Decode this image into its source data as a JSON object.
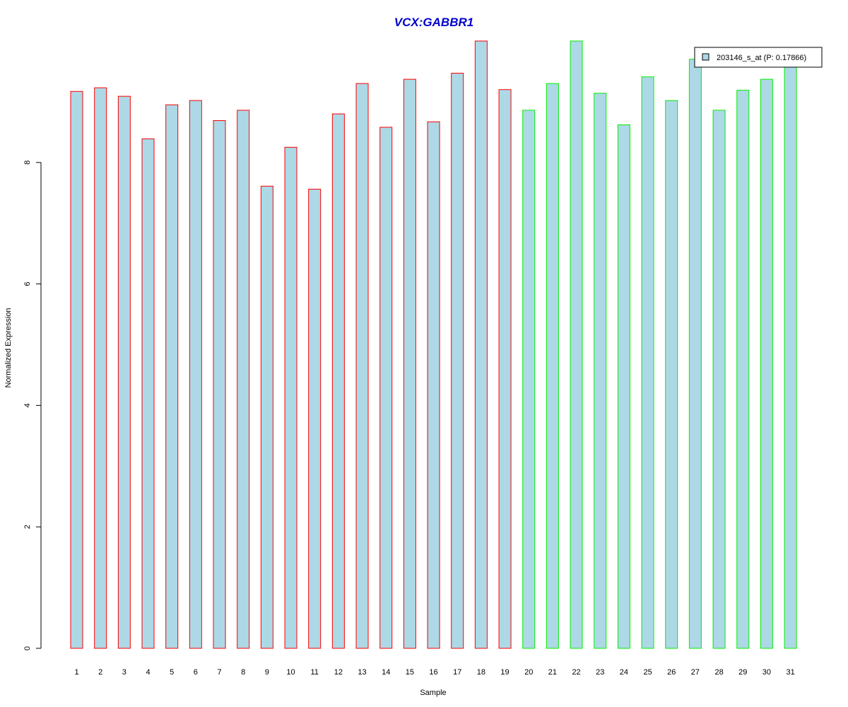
{
  "chart_data": {
    "type": "bar",
    "title": "VCX:GABBR1",
    "title_color": "#0000cc",
    "xlabel": "Sample",
    "ylabel": "Normalized Expression",
    "ylim": [
      0,
      10
    ],
    "yticks": [
      0,
      2,
      4,
      6,
      8
    ],
    "categories": [
      "1",
      "2",
      "3",
      "4",
      "5",
      "6",
      "7",
      "8",
      "9",
      "10",
      "11",
      "12",
      "13",
      "14",
      "15",
      "16",
      "17",
      "18",
      "19",
      "20",
      "21",
      "22",
      "23",
      "24",
      "25",
      "26",
      "27",
      "28",
      "29",
      "30",
      "31"
    ],
    "series": [
      {
        "name": "203146_s_at (P: 0.17866)",
        "values": [
          9.17,
          9.23,
          9.09,
          8.39,
          8.95,
          9.02,
          8.69,
          8.86,
          7.61,
          8.25,
          7.56,
          8.8,
          9.3,
          8.58,
          9.37,
          8.67,
          9.47,
          10.0,
          9.2,
          8.86,
          9.3,
          10.0,
          9.14,
          8.62,
          9.41,
          9.02,
          9.7,
          8.86,
          9.19,
          9.37,
          9.6
        ]
      }
    ],
    "fill_color": "#add8e6",
    "group_colors": [
      "#ff0000",
      "#ff0000",
      "#ff0000",
      "#ff0000",
      "#ff0000",
      "#ff0000",
      "#ff0000",
      "#ff0000",
      "#ff0000",
      "#ff0000",
      "#ff0000",
      "#ff0000",
      "#ff0000",
      "#ff0000",
      "#ff0000",
      "#ff0000",
      "#ff0000",
      "#ff0000",
      "#ff0000",
      "#00ee00",
      "#00ee00",
      "#00ee00",
      "#00ee00",
      "#00ee00",
      "#00ee00",
      "#00ee00",
      "#00ee00",
      "#00ee00",
      "#00ee00",
      "#00ee00",
      "#00ee00"
    ],
    "legend": {
      "label": "203146_s_at (P: 0.17866)",
      "position": "top-right"
    },
    "grid": false
  }
}
